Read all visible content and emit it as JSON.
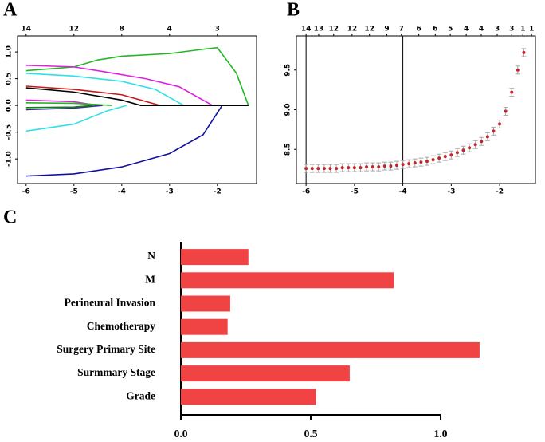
{
  "chart_data": [
    {
      "type": "line",
      "panel": "A",
      "xlim": [
        -6.18,
        -1.18
      ],
      "ylim": [
        -1.46,
        1.3
      ],
      "xticks": [
        -6,
        -5,
        -4,
        -3,
        -2
      ],
      "yticks": [
        {
          "value": -1,
          "label": "-1.0"
        },
        -0.5,
        {
          "value": 0,
          "label": "0.0"
        },
        0.5,
        {
          "value": 1,
          "label": "1.0"
        }
      ],
      "top_ticks": [
        {
          "value": -6,
          "label": "14"
        },
        {
          "value": -5,
          "label": "12"
        },
        {
          "value": -4,
          "label": "8"
        },
        {
          "value": -3,
          "label": "4"
        },
        {
          "value": -2,
          "label": "3"
        }
      ],
      "series": [
        {
          "color": "#22b822",
          "x": [
            -6,
            -5,
            -4.5,
            -4,
            -3,
            -2.3,
            -2,
            -1.6,
            -1.35
          ],
          "values": [
            0.65,
            0.72,
            0.85,
            0.92,
            0.97,
            1.05,
            1.08,
            0.6,
            0
          ]
        },
        {
          "color": "#e020e0",
          "x": [
            -6,
            -5,
            -4.3,
            -3.5,
            -2.8,
            -2.1
          ],
          "values": [
            0.75,
            0.72,
            0.62,
            0.5,
            0.35,
            0
          ]
        },
        {
          "color": "#30e0e8",
          "x": [
            -6,
            -5,
            -4,
            -3.3,
            -2.7
          ],
          "values": [
            0.6,
            0.55,
            0.45,
            0.3,
            0
          ]
        },
        {
          "color": "#c81818",
          "x": [
            -6,
            -5,
            -4,
            -3.2
          ],
          "values": [
            0.36,
            0.3,
            0.2,
            0
          ]
        },
        {
          "color": "#e020e0",
          "x": [
            -6,
            -5,
            -4.5
          ],
          "values": [
            0.1,
            0.07,
            0
          ]
        },
        {
          "color": "#22b822",
          "x": [
            -6,
            -5,
            -4.2
          ],
          "values": [
            0.05,
            0.04,
            0
          ]
        },
        {
          "color": "#303090",
          "x": [
            -6,
            -5,
            -4.4
          ],
          "values": [
            -0.08,
            -0.05,
            0
          ]
        },
        {
          "color": "#108010",
          "x": [
            -6,
            -5,
            -4.6
          ],
          "values": [
            -0.04,
            -0.03,
            0
          ]
        },
        {
          "color": "#30e0e8",
          "x": [
            -6,
            -5,
            -4.3,
            -3.9
          ],
          "values": [
            -0.48,
            -0.35,
            -0.1,
            0
          ]
        },
        {
          "color": "#1010a0",
          "x": [
            -6,
            -5,
            -4,
            -3,
            -2.3,
            -1.9
          ],
          "values": [
            -1.32,
            -1.28,
            -1.15,
            -0.9,
            -0.55,
            0
          ]
        },
        {
          "color": "#000000",
          "x": [
            -6,
            -5,
            -4,
            -3.6,
            -1.35
          ],
          "values": [
            0.33,
            0.25,
            0.1,
            0,
            0
          ]
        }
      ]
    },
    {
      "type": "errorbar",
      "panel": "B",
      "xlim": [
        -6.2,
        -1.26
      ],
      "ylim": [
        8.07,
        9.93
      ],
      "xticks": [
        -6,
        -5,
        -4,
        -3,
        -2
      ],
      "yticks": [
        8.5,
        {
          "value": 9,
          "label": "9.0"
        },
        9.5
      ],
      "top_ticks": [
        {
          "value": -6,
          "label": "14"
        },
        {
          "value": -5.74,
          "label": "13"
        },
        {
          "value": -5.43,
          "label": "12"
        },
        {
          "value": -5.05,
          "label": "12"
        },
        {
          "value": -4.69,
          "label": "12"
        },
        {
          "value": -4.33,
          "label": "9"
        },
        {
          "value": -4.03,
          "label": "7"
        },
        {
          "value": -3.67,
          "label": "6"
        },
        {
          "value": -3.33,
          "label": "6"
        },
        {
          "value": -3.02,
          "label": "5"
        },
        {
          "value": -2.69,
          "label": "4"
        },
        {
          "value": -2.38,
          "label": "4"
        },
        {
          "value": -2.05,
          "label": "3"
        },
        {
          "value": -1.75,
          "label": "3"
        },
        {
          "value": -1.52,
          "label": "1"
        },
        {
          "value": -1.34,
          "label": "1"
        }
      ],
      "vlines": [
        -6,
        -4
      ],
      "error": 0.05,
      "color": "#c0262c",
      "error_color": "#a8a8a8",
      "x": [
        -6,
        -5.875,
        -5.75,
        -5.625,
        -5.5,
        -5.375,
        -5.25,
        -5.125,
        -5,
        -4.875,
        -4.75,
        -4.625,
        -4.5,
        -4.375,
        -4.25,
        -4.125,
        -4,
        -3.875,
        -3.75,
        -3.625,
        -3.5,
        -3.375,
        -3.25,
        -3.125,
        -3,
        -2.875,
        -2.75,
        -2.625,
        -2.5,
        -2.375,
        -2.25,
        -2.125,
        -2,
        -1.875,
        -1.75,
        -1.625,
        -1.5
      ],
      "values": [
        8.26,
        8.26,
        8.26,
        8.26,
        8.26,
        8.26,
        8.27,
        8.27,
        8.27,
        8.27,
        8.28,
        8.28,
        8.28,
        8.29,
        8.29,
        8.3,
        8.31,
        8.32,
        8.33,
        8.34,
        8.35,
        8.37,
        8.39,
        8.41,
        8.43,
        8.46,
        8.49,
        8.52,
        8.56,
        8.6,
        8.66,
        8.73,
        8.82,
        8.98,
        9.22,
        9.5,
        9.72
      ]
    },
    {
      "type": "hbar",
      "panel": "C",
      "xlim": [
        0,
        1.23
      ],
      "xticks": [
        {
          "value": 0,
          "label": "0.0"
        },
        0.5,
        {
          "value": 1,
          "label": "1.0"
        }
      ],
      "color": "#f04444",
      "categories": [
        "N",
        "M",
        "Perineural Invasion",
        "Chemotherapy",
        "Surgery Primary Site",
        "Surmmary Stage",
        "Grade"
      ],
      "values": [
        0.26,
        0.82,
        0.19,
        0.18,
        1.15,
        0.65,
        0.52
      ]
    }
  ]
}
